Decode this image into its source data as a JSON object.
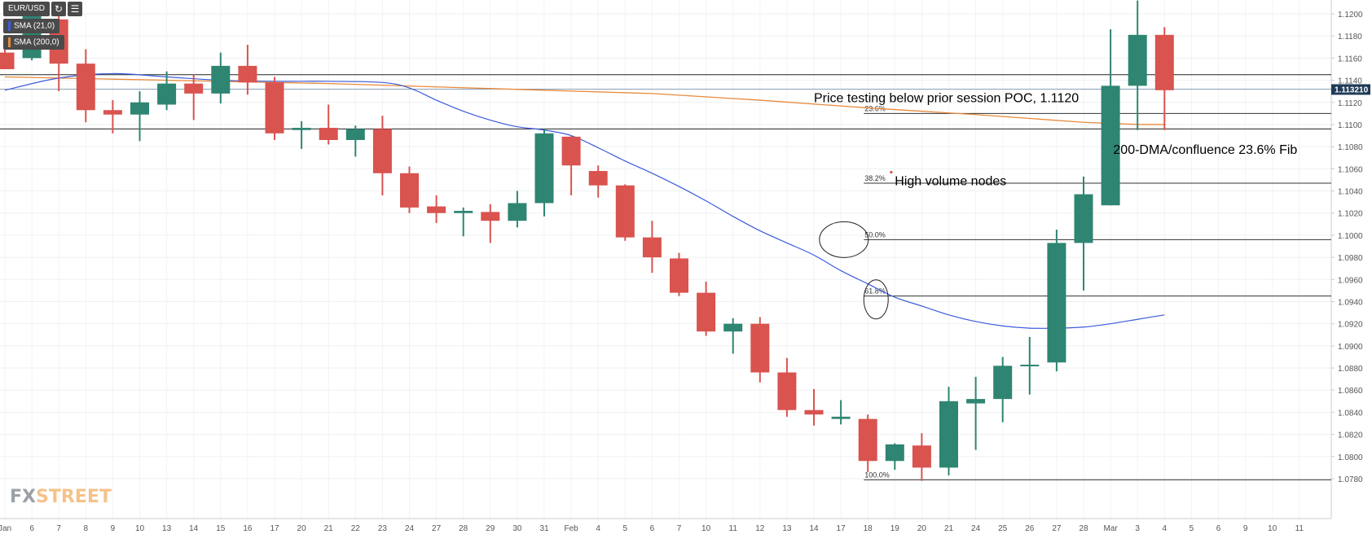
{
  "toolbar": {
    "symbol": "EUR/USD",
    "refresh_icon": "refresh-icon",
    "settings_icon": "chart-settings-icon"
  },
  "indicators": [
    {
      "label": "SMA (21,0)",
      "color": "#3b5bdb"
    },
    {
      "label": "SMA (200,0)",
      "color": "#e8893a"
    }
  ],
  "watermark": {
    "fx": "FX",
    "street": "STREET"
  },
  "colors": {
    "up": "#2e8572",
    "down": "#d9534f",
    "sma21": "#3b5bdb",
    "sma200": "#e8893a"
  },
  "chart_data": {
    "type": "candlestick",
    "current_price_label": "1.113210",
    "ylim": [
      1.077,
      1.121
    ],
    "y_ticks": [
      "1.1200",
      "1.1180",
      "1.1160",
      "1.1140",
      "1.1120",
      "1.1100",
      "1.1080",
      "1.1060",
      "1.1040",
      "1.1020",
      "1.1000",
      "1.0980",
      "1.0960",
      "1.0940",
      "1.0920",
      "1.0900",
      "1.0880",
      "1.0860",
      "1.0840",
      "1.0820",
      "1.0800",
      "1.0780"
    ],
    "x_labels": [
      "Jan",
      "6",
      "7",
      "8",
      "9",
      "10",
      "13",
      "14",
      "15",
      "16",
      "17",
      "20",
      "21",
      "22",
      "23",
      "24",
      "27",
      "28",
      "29",
      "30",
      "31",
      "Feb",
      "4",
      "5",
      "6",
      "7",
      "10",
      "11",
      "12",
      "13",
      "14",
      "17",
      "18",
      "19",
      "20",
      "21",
      "24",
      "25",
      "26",
      "27",
      "28",
      "Mar",
      "3",
      "4",
      "5",
      "6",
      "9",
      "10",
      "11"
    ],
    "candles": [
      {
        "o": 1.1165,
        "h": 1.1175,
        "l": 1.115,
        "c": 1.115
      },
      {
        "o": 1.116,
        "h": 1.121,
        "l": 1.1158,
        "c": 1.12
      },
      {
        "o": 1.1195,
        "h": 1.12,
        "l": 1.113,
        "c": 1.1155
      },
      {
        "o": 1.1155,
        "h": 1.1168,
        "l": 1.1102,
        "c": 1.1113
      },
      {
        "o": 1.1113,
        "h": 1.1122,
        "l": 1.1092,
        "c": 1.1109
      },
      {
        "o": 1.1109,
        "h": 1.113,
        "l": 1.1085,
        "c": 1.112
      },
      {
        "o": 1.1118,
        "h": 1.1148,
        "l": 1.1113,
        "c": 1.1137
      },
      {
        "o": 1.1137,
        "h": 1.1145,
        "l": 1.1104,
        "c": 1.1128
      },
      {
        "o": 1.1128,
        "h": 1.1165,
        "l": 1.1119,
        "c": 1.1153
      },
      {
        "o": 1.1153,
        "h": 1.1172,
        "l": 1.1127,
        "c": 1.1138
      },
      {
        "o": 1.1138,
        "h": 1.1143,
        "l": 1.1086,
        "c": 1.1092
      },
      {
        "o": 1.1095,
        "h": 1.1103,
        "l": 1.1078,
        "c": 1.1097
      },
      {
        "o": 1.1097,
        "h": 1.1118,
        "l": 1.1082,
        "c": 1.1086
      },
      {
        "o": 1.1086,
        "h": 1.1099,
        "l": 1.1071,
        "c": 1.1096
      },
      {
        "o": 1.1096,
        "h": 1.1108,
        "l": 1.1036,
        "c": 1.1056
      },
      {
        "o": 1.1056,
        "h": 1.1062,
        "l": 1.102,
        "c": 1.1025
      },
      {
        "o": 1.1026,
        "h": 1.1036,
        "l": 1.1011,
        "c": 1.102
      },
      {
        "o": 1.102,
        "h": 1.1025,
        "l": 1.0999,
        "c": 1.1022
      },
      {
        "o": 1.1021,
        "h": 1.1028,
        "l": 1.0993,
        "c": 1.1013
      },
      {
        "o": 1.1013,
        "h": 1.104,
        "l": 1.1007,
        "c": 1.1029
      },
      {
        "o": 1.1029,
        "h": 1.1096,
        "l": 1.1017,
        "c": 1.1092
      },
      {
        "o": 1.1089,
        "h": 1.109,
        "l": 1.1036,
        "c": 1.1063
      },
      {
        "o": 1.1058,
        "h": 1.1063,
        "l": 1.1034,
        "c": 1.1045
      },
      {
        "o": 1.1045,
        "h": 1.1046,
        "l": 1.0995,
        "c": 1.0998
      },
      {
        "o": 1.0998,
        "h": 1.1013,
        "l": 1.0966,
        "c": 1.098
      },
      {
        "o": 1.0979,
        "h": 1.0984,
        "l": 1.0945,
        "c": 1.0948
      },
      {
        "o": 1.0948,
        "h": 1.0958,
        "l": 1.0909,
        "c": 1.0913
      },
      {
        "o": 1.0913,
        "h": 1.0925,
        "l": 1.0893,
        "c": 1.092
      },
      {
        "o": 1.092,
        "h": 1.0926,
        "l": 1.0867,
        "c": 1.0876
      },
      {
        "o": 1.0876,
        "h": 1.0889,
        "l": 1.0836,
        "c": 1.0842
      },
      {
        "o": 1.0842,
        "h": 1.0861,
        "l": 1.0828,
        "c": 1.0838
      },
      {
        "o": 1.0834,
        "h": 1.0851,
        "l": 1.0829,
        "c": 1.0836
      },
      {
        "o": 1.0834,
        "h": 1.0838,
        "l": 1.0786,
        "c": 1.0796
      },
      {
        "o": 1.0796,
        "h": 1.0812,
        "l": 1.0788,
        "c": 1.0811
      },
      {
        "o": 1.081,
        "h": 1.0821,
        "l": 1.0778,
        "c": 1.079
      },
      {
        "o": 1.079,
        "h": 1.0863,
        "l": 1.0783,
        "c": 1.085
      },
      {
        "o": 1.0848,
        "h": 1.0872,
        "l": 1.0806,
        "c": 1.0852
      },
      {
        "o": 1.0852,
        "h": 1.089,
        "l": 1.0831,
        "c": 1.0882
      },
      {
        "o": 1.0882,
        "h": 1.0908,
        "l": 1.0856,
        "c": 1.0883
      },
      {
        "o": 1.0885,
        "h": 1.1005,
        "l": 1.0877,
        "c": 1.0993
      },
      {
        "o": 1.0993,
        "h": 1.1053,
        "l": 1.095,
        "c": 1.1037
      },
      {
        "o": 1.1027,
        "h": 1.1186,
        "l": 1.1027,
        "c": 1.1135
      },
      {
        "o": 1.1135,
        "h": 1.1212,
        "l": 1.1095,
        "c": 1.1181
      },
      {
        "o": 1.1181,
        "h": 1.1188,
        "l": 1.1095,
        "c": 1.1131
      }
    ],
    "sma21": [
      [
        0,
        1.1131
      ],
      [
        2,
        1.1142
      ],
      [
        4,
        1.1146
      ],
      [
        6,
        1.1143
      ],
      [
        8,
        1.114
      ],
      [
        10,
        1.1139
      ],
      [
        12,
        1.1139
      ],
      [
        14,
        1.1138
      ],
      [
        15,
        1.1133
      ],
      [
        16,
        1.1122
      ],
      [
        17,
        1.1112
      ],
      [
        18,
        1.1104
      ],
      [
        19,
        1.1098
      ],
      [
        20,
        1.1095
      ],
      [
        21,
        1.109
      ],
      [
        22,
        1.1079
      ],
      [
        23,
        1.1067
      ],
      [
        24,
        1.1056
      ],
      [
        25,
        1.1044
      ],
      [
        26,
        1.1031
      ],
      [
        27,
        1.1017
      ],
      [
        28,
        1.1004
      ],
      [
        29,
        1.0993
      ],
      [
        30,
        1.0982
      ],
      [
        31,
        1.0968
      ],
      [
        32,
        1.0956
      ],
      [
        33,
        1.0944
      ],
      [
        34,
        1.0936
      ],
      [
        35,
        1.0928
      ],
      [
        36,
        1.0922
      ],
      [
        37,
        1.0918
      ],
      [
        38,
        1.0916
      ],
      [
        39,
        1.0916
      ],
      [
        40,
        1.0917
      ],
      [
        41,
        1.092
      ],
      [
        42,
        1.0924
      ],
      [
        43,
        1.0928
      ]
    ],
    "sma200": [
      [
        0,
        1.1143
      ],
      [
        4,
        1.1141
      ],
      [
        8,
        1.1139
      ],
      [
        12,
        1.1137
      ],
      [
        16,
        1.1134
      ],
      [
        20,
        1.1131
      ],
      [
        24,
        1.1128
      ],
      [
        28,
        1.1122
      ],
      [
        32,
        1.1115
      ],
      [
        36,
        1.1109
      ],
      [
        40,
        1.1102
      ],
      [
        42,
        1.11
      ],
      [
        43,
        1.11
      ]
    ],
    "horizontal_lines": [
      {
        "price": 1.1145
      },
      {
        "price": 1.1132,
        "color": "#8aa0b8"
      },
      {
        "price": 1.1096
      }
    ],
    "fib_levels": [
      {
        "label": "23.6%",
        "price": 1.111
      },
      {
        "label": "38.2%",
        "price": 1.1047
      },
      {
        "label": "50.0%",
        "price": 1.0996
      },
      {
        "label": "61.8%",
        "price": 1.0945
      },
      {
        "label": "100.0%",
        "price": 1.0779
      }
    ],
    "annotations": [
      {
        "text": "Price testing below prior session POC, 1.1120",
        "price": 1.1124,
        "x": 30.0
      },
      {
        "text": "200-DMA/confluence 23.6% Fib",
        "price": 1.1077,
        "x": 41.1
      },
      {
        "text": "High volume nodes",
        "price": 1.1049,
        "x": 33.0
      }
    ]
  }
}
